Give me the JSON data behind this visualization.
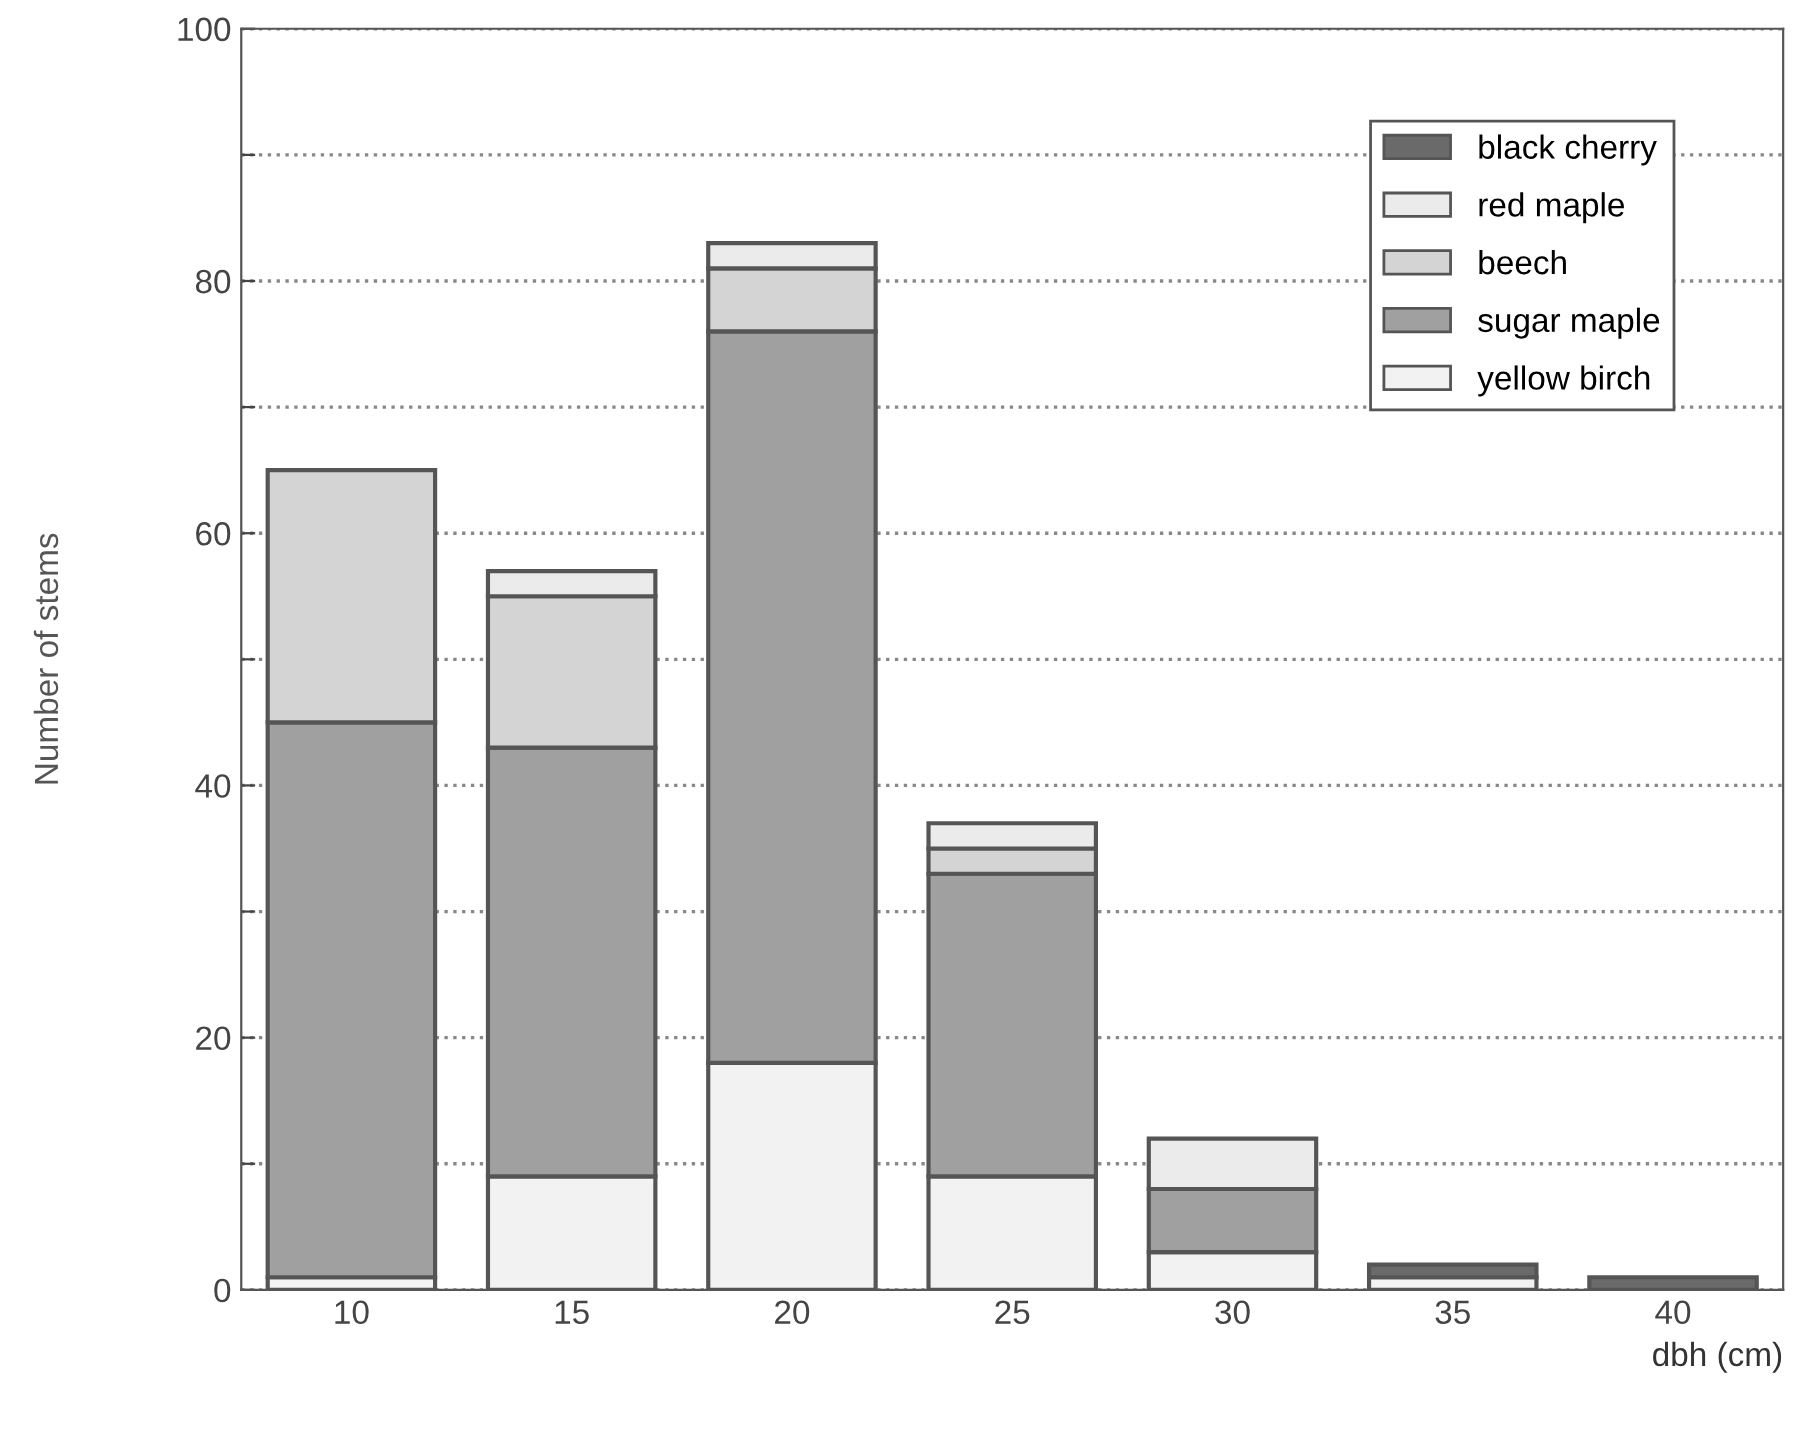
{
  "chart_data": {
    "type": "bar",
    "stacked": true,
    "xlabel": "dbh (cm)",
    "ylabel": "Number of stems",
    "categories": [
      "10",
      "15",
      "20",
      "25",
      "30",
      "35",
      "40"
    ],
    "series": [
      {
        "name": "yellow birch",
        "color": "#f2f2f2",
        "values": [
          1,
          9,
          18,
          9,
          3,
          1,
          0
        ]
      },
      {
        "name": "sugar maple",
        "color": "#a0a0a0",
        "values": [
          44,
          34,
          58,
          24,
          5,
          0,
          0
        ]
      },
      {
        "name": "beech",
        "color": "#d4d4d4",
        "values": [
          20,
          12,
          5,
          2,
          0,
          0,
          0
        ]
      },
      {
        "name": "red maple",
        "color": "#ebebeb",
        "values": [
          0,
          2,
          2,
          2,
          4,
          0,
          0
        ]
      },
      {
        "name": "black cherry",
        "color": "#6a6a6a",
        "values": [
          0,
          0,
          0,
          0,
          0,
          1,
          1
        ]
      }
    ],
    "ylim": [
      0,
      100
    ],
    "yticks": [
      0,
      {
        "value": 10,
        "label": null
      },
      20,
      {
        "value": 30,
        "label": null
      },
      40,
      {
        "value": 50,
        "label": null
      },
      60,
      {
        "value": 70,
        "label": null
      },
      80,
      {
        "value": 90,
        "label": null
      },
      100
    ],
    "grid": "y",
    "legend": "top right"
  }
}
